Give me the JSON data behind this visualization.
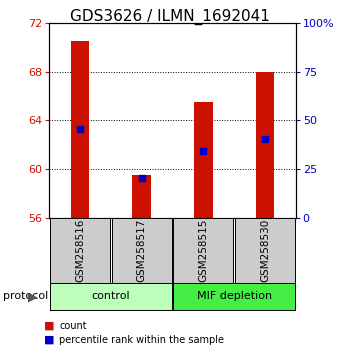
{
  "title": "GDS3626 / ILMN_1692041",
  "samples": [
    "GSM258516",
    "GSM258517",
    "GSM258515",
    "GSM258530"
  ],
  "groups": [
    {
      "label": "control",
      "indices": [
        0,
        1
      ],
      "color": "#bbffbb"
    },
    {
      "label": "MIF depletion",
      "indices": [
        2,
        3
      ],
      "color": "#44ee44"
    }
  ],
  "red_bar_values": [
    70.5,
    59.5,
    65.5,
    68.0
  ],
  "blue_square_values": [
    63.3,
    59.3,
    61.5,
    62.5
  ],
  "y_min": 56,
  "y_max": 72,
  "y_ticks_left": [
    56,
    60,
    64,
    68,
    72
  ],
  "y_ticks_right_vals": [
    0,
    25,
    50,
    75,
    100
  ],
  "y_ticks_right_labels": [
    "0",
    "25",
    "50",
    "75",
    "100%"
  ],
  "bar_color": "#cc1100",
  "blue_color": "#0000cc",
  "bg_color": "#ffffff",
  "title_fontsize": 11,
  "tick_fontsize": 8,
  "label_color_left": "#cc1100",
  "label_color_right": "#0000bb",
  "sample_label_color": "#cccccc",
  "bar_width": 0.3
}
